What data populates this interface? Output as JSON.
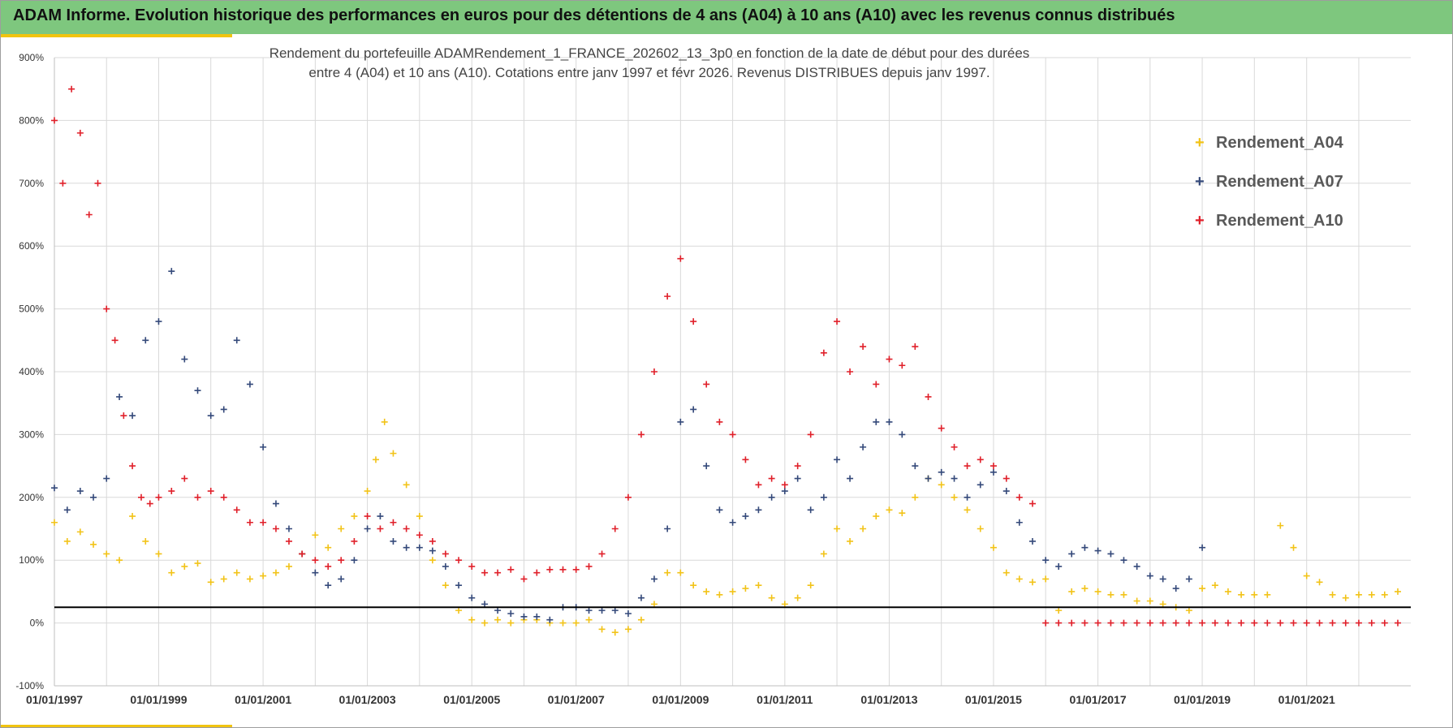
{
  "header": {
    "title": "ADAM Informe. Evolution historique des performances en euros pour des détentions de 4 ans (A04) à 10 ans (A10) avec les revenus connus distribués"
  },
  "colors": {
    "A04": "#f2c318",
    "A07": "#34497a",
    "A10": "#e0202a",
    "grid": "#d9d9d9",
    "reference_line": "#000000",
    "header_bg": "#7ec77e",
    "accent": "#f1c40f"
  },
  "chart_data": {
    "type": "scatter",
    "title": "Rendement du portefeuille ADAMRendement_1_FRANCE_202602_13_3p0  en fonction de la date de début pour des durées entre 4 (A04) et 10 ans (A10). Cotations  entre janv 1997 et févr 2026. Revenus DISTRIBUES depuis janv 1997.",
    "title_lines": [
      "Rendement du portefeuille ADAMRendement_1_FRANCE_202602_13_3p0  en fonction de la date de début pour des durées",
      "entre 4 (A04) et 10 ans (A10). Cotations  entre janv 1997 et févr 2026. Revenus DISTRIBUES depuis janv 1997."
    ],
    "xlabel": "",
    "ylabel": "",
    "x_type": "date",
    "xlim": [
      "1997-01-01",
      "2022-12-31"
    ],
    "ylim": [
      -100,
      900
    ],
    "y_ticks": [
      "-100%",
      "0%",
      "100%",
      "200%",
      "300%",
      "400%",
      "500%",
      "600%",
      "700%",
      "800%",
      "900%"
    ],
    "x_ticks": [
      "01/01/1997",
      "01/01/1999",
      "01/01/2001",
      "01/01/2003",
      "01/01/2005",
      "01/01/2007",
      "01/01/2009",
      "01/01/2011",
      "01/01/2013",
      "01/01/2015",
      "01/01/2017",
      "01/01/2019",
      "01/01/2021"
    ],
    "grid": true,
    "legend_position": "top-right",
    "reference_line": {
      "y": 25
    },
    "series": [
      {
        "name": "Rendement_A04",
        "marker": "+",
        "color": "#f2c318",
        "x": [
          "1997-01",
          "1997-04",
          "1997-07",
          "1997-10",
          "1998-01",
          "1998-04",
          "1998-07",
          "1998-10",
          "1999-01",
          "1999-04",
          "1999-07",
          "1999-10",
          "2000-01",
          "2000-04",
          "2000-07",
          "2000-10",
          "2001-01",
          "2001-04",
          "2001-07",
          "2001-10",
          "2002-01",
          "2002-04",
          "2002-07",
          "2002-10",
          "2003-01",
          "2003-03",
          "2003-05",
          "2003-07",
          "2003-10",
          "2004-01",
          "2004-04",
          "2004-07",
          "2004-10",
          "2005-01",
          "2005-04",
          "2005-07",
          "2005-10",
          "2006-01",
          "2006-04",
          "2006-07",
          "2006-10",
          "2007-01",
          "2007-04",
          "2007-07",
          "2007-10",
          "2008-01",
          "2008-04",
          "2008-07",
          "2008-10",
          "2009-01",
          "2009-04",
          "2009-07",
          "2009-10",
          "2010-01",
          "2010-04",
          "2010-07",
          "2010-10",
          "2011-01",
          "2011-04",
          "2011-07",
          "2011-10",
          "2012-01",
          "2012-04",
          "2012-07",
          "2012-10",
          "2013-01",
          "2013-04",
          "2013-07",
          "2013-10",
          "2014-01",
          "2014-04",
          "2014-07",
          "2014-10",
          "2015-01",
          "2015-04",
          "2015-07",
          "2015-10",
          "2016-01",
          "2016-04",
          "2016-07",
          "2016-10",
          "2017-01",
          "2017-04",
          "2017-07",
          "2017-10",
          "2018-01",
          "2018-04",
          "2018-07",
          "2018-10",
          "2019-01",
          "2019-04",
          "2019-07",
          "2019-10",
          "2020-01",
          "2020-04",
          "2020-07",
          "2020-10",
          "2021-01",
          "2021-04",
          "2021-07",
          "2021-10",
          "2022-01",
          "2022-04",
          "2022-07",
          "2022-10"
        ],
        "y": [
          160,
          130,
          145,
          125,
          110,
          100,
          170,
          130,
          110,
          80,
          90,
          95,
          65,
          70,
          80,
          70,
          75,
          80,
          90,
          110,
          140,
          120,
          150,
          170,
          210,
          260,
          320,
          270,
          220,
          170,
          100,
          60,
          20,
          5,
          0,
          5,
          0,
          5,
          5,
          0,
          0,
          0,
          5,
          -10,
          -15,
          -10,
          5,
          30,
          80,
          80,
          60,
          50,
          45,
          50,
          55,
          60,
          40,
          30,
          40,
          60,
          110,
          150,
          130,
          150,
          170,
          180,
          175,
          200,
          230,
          220,
          200,
          180,
          150,
          120,
          80,
          70,
          65,
          70,
          20,
          50,
          55,
          50,
          45,
          45,
          35,
          35,
          30,
          25,
          20,
          55,
          60,
          50,
          45,
          45,
          45,
          155,
          120,
          75,
          65,
          45,
          40,
          45,
          45,
          45,
          50
        ]
      },
      {
        "name": "Rendement_A07",
        "marker": "+",
        "color": "#34497a",
        "x": [
          "1997-01",
          "1997-04",
          "1997-07",
          "1997-10",
          "1998-01",
          "1998-04",
          "1998-07",
          "1998-10",
          "1999-01",
          "1999-04",
          "1999-07",
          "1999-10",
          "2000-01",
          "2000-04",
          "2000-07",
          "2000-10",
          "2001-01",
          "2001-04",
          "2001-07",
          "2001-10",
          "2002-01",
          "2002-04",
          "2002-07",
          "2002-10",
          "2003-01",
          "2003-04",
          "2003-07",
          "2003-10",
          "2004-01",
          "2004-04",
          "2004-07",
          "2004-10",
          "2005-01",
          "2005-04",
          "2005-07",
          "2005-10",
          "2006-01",
          "2006-04",
          "2006-07",
          "2006-10",
          "2007-01",
          "2007-04",
          "2007-07",
          "2007-10",
          "2008-01",
          "2008-04",
          "2008-07",
          "2008-10",
          "2009-01",
          "2009-04",
          "2009-07",
          "2009-10",
          "2010-01",
          "2010-04",
          "2010-07",
          "2010-10",
          "2011-01",
          "2011-04",
          "2011-07",
          "2011-10",
          "2012-01",
          "2012-04",
          "2012-07",
          "2012-10",
          "2013-01",
          "2013-04",
          "2013-07",
          "2013-10",
          "2014-01",
          "2014-04",
          "2014-07",
          "2014-10",
          "2015-01",
          "2015-04",
          "2015-07",
          "2015-10",
          "2016-01",
          "2016-04",
          "2016-07",
          "2016-10",
          "2017-01",
          "2017-04",
          "2017-07",
          "2017-10",
          "2018-01",
          "2018-04",
          "2018-07",
          "2018-10",
          "2019-01"
        ],
        "y": [
          215,
          180,
          210,
          200,
          230,
          360,
          330,
          450,
          480,
          560,
          420,
          370,
          330,
          340,
          450,
          380,
          280,
          190,
          150,
          110,
          80,
          60,
          70,
          100,
          150,
          170,
          130,
          120,
          120,
          115,
          90,
          60,
          40,
          30,
          20,
          15,
          10,
          10,
          5,
          25,
          25,
          20,
          20,
          20,
          15,
          40,
          70,
          150,
          320,
          340,
          250,
          180,
          160,
          170,
          180,
          200,
          210,
          230,
          180,
          200,
          260,
          230,
          280,
          320,
          320,
          300,
          250,
          230,
          240,
          230,
          200,
          220,
          240,
          210,
          160,
          130,
          100,
          90,
          110,
          120,
          115,
          110,
          100,
          90,
          75,
          70,
          55,
          70,
          120
        ]
      },
      {
        "name": "Rendement_A10",
        "marker": "+",
        "color": "#e0202a",
        "x": [
          "1997-01",
          "1997-03",
          "1997-05",
          "1997-07",
          "1997-09",
          "1997-11",
          "1998-01",
          "1998-03",
          "1998-05",
          "1998-07",
          "1998-09",
          "1998-11",
          "1999-01",
          "1999-04",
          "1999-07",
          "1999-10",
          "2000-01",
          "2000-04",
          "2000-07",
          "2000-10",
          "2001-01",
          "2001-04",
          "2001-07",
          "2001-10",
          "2002-01",
          "2002-04",
          "2002-07",
          "2002-10",
          "2003-01",
          "2003-04",
          "2003-07",
          "2003-10",
          "2004-01",
          "2004-04",
          "2004-07",
          "2004-10",
          "2005-01",
          "2005-04",
          "2005-07",
          "2005-10",
          "2006-01",
          "2006-04",
          "2006-07",
          "2006-10",
          "2007-01",
          "2007-04",
          "2007-07",
          "2007-10",
          "2008-01",
          "2008-04",
          "2008-07",
          "2008-10",
          "2009-01",
          "2009-04",
          "2009-07",
          "2009-10",
          "2010-01",
          "2010-04",
          "2010-07",
          "2010-10",
          "2011-01",
          "2011-04",
          "2011-07",
          "2011-10",
          "2012-01",
          "2012-04",
          "2012-07",
          "2012-10",
          "2013-01",
          "2013-04",
          "2013-07",
          "2013-10",
          "2014-01",
          "2014-04",
          "2014-07",
          "2014-10",
          "2015-01",
          "2015-04",
          "2015-07",
          "2015-10",
          "2016-01",
          "2016-04",
          "2016-07",
          "2016-10",
          "2017-01",
          "2017-04",
          "2017-07",
          "2017-10",
          "2018-01",
          "2018-04",
          "2018-07",
          "2018-10",
          "2019-01",
          "2019-04",
          "2019-07",
          "2019-10",
          "2020-01",
          "2020-04",
          "2020-07",
          "2020-10",
          "2021-01",
          "2021-04",
          "2021-07",
          "2021-10",
          "2022-01",
          "2022-04",
          "2022-07",
          "2022-10"
        ],
        "y": [
          800,
          700,
          850,
          780,
          650,
          700,
          500,
          450,
          330,
          250,
          200,
          190,
          200,
          210,
          230,
          200,
          210,
          200,
          180,
          160,
          160,
          150,
          130,
          110,
          100,
          90,
          100,
          130,
          170,
          150,
          160,
          150,
          140,
          130,
          110,
          100,
          90,
          80,
          80,
          85,
          70,
          80,
          85,
          85,
          85,
          90,
          110,
          150,
          200,
          300,
          400,
          520,
          580,
          480,
          380,
          320,
          300,
          260,
          220,
          230,
          220,
          250,
          300,
          430,
          480,
          400,
          440,
          380,
          420,
          410,
          440,
          360,
          310,
          280,
          250,
          260,
          250,
          230,
          200,
          190,
          0,
          0,
          0,
          0,
          0,
          0,
          0,
          0,
          0,
          0,
          0,
          0,
          0,
          0,
          0,
          0,
          0,
          0,
          0,
          0,
          0,
          0,
          0,
          0,
          0,
          0,
          0,
          0
        ]
      }
    ]
  }
}
